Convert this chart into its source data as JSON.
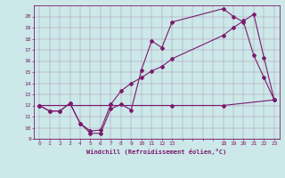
{
  "bg_color": "#cce8e8",
  "line_color": "#7b1a6e",
  "xlim": [
    -0.5,
    23.5
  ],
  "ylim": [
    9,
    21
  ],
  "yticks": [
    9,
    10,
    11,
    12,
    13,
    14,
    15,
    16,
    17,
    18,
    19,
    20
  ],
  "xtick_labels": [
    "0",
    "1",
    "2",
    "3",
    "4",
    "5",
    "6",
    "7",
    "8",
    "9",
    "10",
    "11",
    "12",
    "13",
    "",
    "",
    "",
    "",
    "18",
    "19",
    "20",
    "21",
    "22",
    "23"
  ],
  "xlabel": "Windchill (Refroidissement éolien,°C)",
  "line1_x": [
    0,
    1,
    2,
    3,
    4,
    5,
    6,
    7,
    8,
    9,
    10,
    11,
    12,
    13,
    18,
    19,
    20,
    21,
    22,
    23
  ],
  "line1_y": [
    12,
    11.5,
    11.5,
    12.2,
    10.4,
    9.5,
    9.5,
    11.7,
    12.1,
    11.6,
    15.2,
    17.8,
    17.2,
    19.5,
    20.7,
    20.0,
    19.5,
    16.5,
    14.5,
    12.5
  ],
  "line2_x": [
    0,
    1,
    2,
    3,
    4,
    5,
    6,
    7,
    8,
    9,
    10,
    11,
    12,
    13,
    18,
    19,
    20,
    21,
    22,
    23
  ],
  "line2_y": [
    12,
    11.5,
    11.5,
    12.2,
    10.4,
    9.7,
    9.8,
    12.1,
    13.3,
    14.0,
    14.5,
    15.1,
    15.5,
    16.2,
    18.3,
    19.0,
    19.6,
    20.2,
    16.3,
    12.5
  ],
  "line3_x": [
    0,
    13,
    18,
    23
  ],
  "line3_y": [
    12,
    12,
    12,
    12.5
  ]
}
